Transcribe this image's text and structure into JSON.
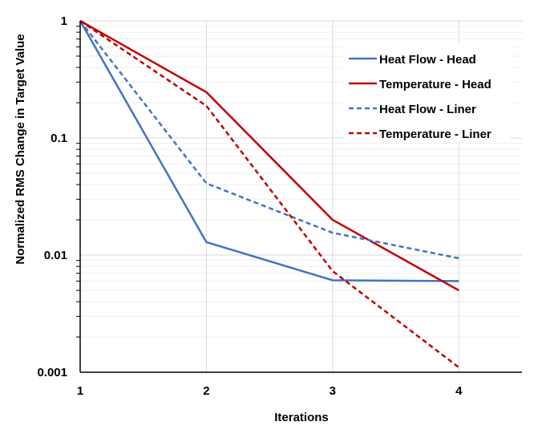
{
  "chart_data": {
    "type": "line",
    "title": "",
    "xlabel": "Iterations",
    "ylabel": "Normalized RMS  Change in Target Value",
    "x": [
      1,
      2,
      3,
      4
    ],
    "xlim": [
      1,
      4.5
    ],
    "xticks": [
      "1",
      "2",
      "3",
      "4"
    ],
    "ylim": [
      0.001,
      1
    ],
    "yscale": "log",
    "yticks": [
      "1",
      "0.1",
      "0.01",
      "0.001"
    ],
    "grid": true,
    "legend_position": "top-right",
    "series": [
      {
        "name": "Heat Flow - Head",
        "values": [
          1,
          0.0129,
          0.0061,
          0.006
        ],
        "color": "#4472C4",
        "dash": false
      },
      {
        "name": "Temperature - Head",
        "values": [
          1,
          0.246,
          0.02,
          0.005
        ],
        "color": "#C00000",
        "dash": false
      },
      {
        "name": "Heat Flow - Liner",
        "values": [
          1,
          0.041,
          0.0155,
          0.0094
        ],
        "color": "#4472C4",
        "dash": true
      },
      {
        "name": "Temperature - Liner",
        "values": [
          1,
          0.188,
          0.0073,
          0.0011
        ],
        "color": "#C00000",
        "dash": true
      }
    ]
  }
}
